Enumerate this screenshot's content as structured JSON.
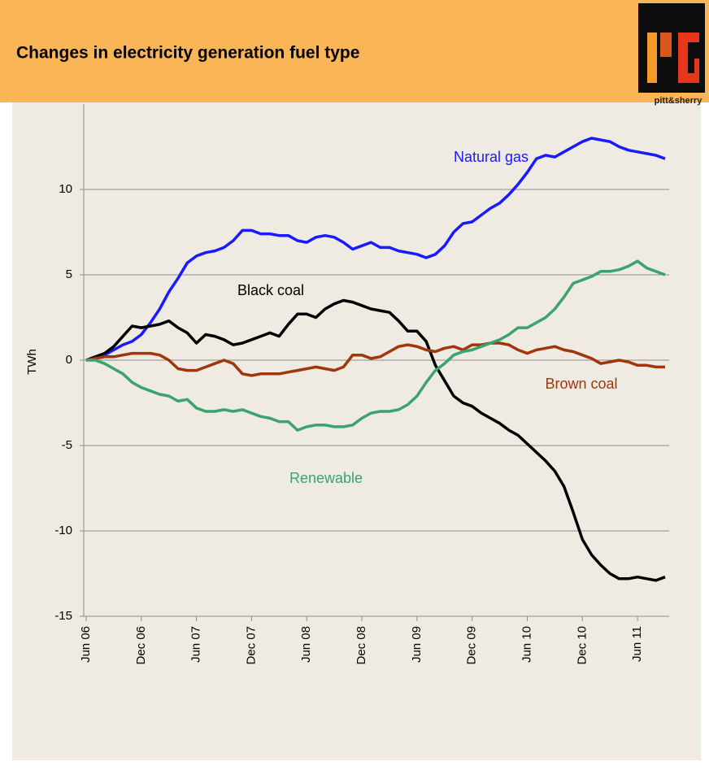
{
  "chart_data": {
    "type": "line",
    "title": "Changes in electricity generation fuel type",
    "logo_text": "pitt&sherry",
    "ylabel": "TWh",
    "categories": [
      "Jun 06",
      null,
      null,
      null,
      null,
      null,
      "Dec 06",
      null,
      null,
      null,
      null,
      null,
      "Jun 07",
      null,
      null,
      null,
      null,
      null,
      "Dec 07",
      null,
      null,
      null,
      null,
      null,
      "Jun 08",
      null,
      null,
      null,
      null,
      null,
      "Dec 08",
      null,
      null,
      null,
      null,
      null,
      "Jun 09",
      null,
      null,
      null,
      null,
      null,
      "Dec 09",
      null,
      null,
      null,
      null,
      null,
      "Jun 10",
      null,
      null,
      null,
      null,
      null,
      "Dec 10",
      null,
      null,
      null,
      null,
      null,
      "Jun 11",
      null,
      null,
      null
    ],
    "ylim": [
      -15,
      15
    ],
    "yticks": [
      -15,
      -10,
      -5,
      0,
      5,
      10
    ],
    "grid": true,
    "series": [
      {
        "name": "Natural gas",
        "color": "#1a1aff",
        "values": [
          0,
          0.1,
          0.3,
          0.6,
          0.9,
          1.1,
          1.5,
          2.2,
          3.0,
          4.0,
          4.8,
          5.7,
          6.1,
          6.3,
          6.4,
          6.6,
          7.0,
          7.6,
          7.6,
          7.4,
          7.4,
          7.3,
          7.3,
          7.0,
          6.9,
          7.2,
          7.3,
          7.2,
          6.9,
          6.5,
          6.7,
          6.9,
          6.6,
          6.6,
          6.4,
          6.3,
          6.2,
          6.0,
          6.2,
          6.7,
          7.5,
          8.0,
          8.1,
          8.5,
          8.9,
          9.2,
          9.7,
          10.3,
          11.0,
          11.8,
          12.0,
          11.9,
          12.2,
          12.5,
          12.8,
          13.0,
          12.9,
          12.8,
          12.5,
          12.3,
          12.2,
          12.1,
          12.0,
          11.8
        ]
      },
      {
        "name": "Black coal",
        "color": "#000000",
        "values": [
          0,
          0.2,
          0.4,
          0.8,
          1.4,
          2.0,
          1.9,
          2.0,
          2.1,
          2.3,
          1.9,
          1.6,
          1.0,
          1.5,
          1.4,
          1.2,
          0.9,
          1.0,
          1.2,
          1.4,
          1.6,
          1.4,
          2.1,
          2.7,
          2.7,
          2.5,
          3.0,
          3.3,
          3.5,
          3.4,
          3.2,
          3.0,
          2.9,
          2.8,
          2.3,
          1.7,
          1.7,
          1.1,
          -0.3,
          -1.2,
          -2.1,
          -2.5,
          -2.7,
          -3.1,
          -3.4,
          -3.7,
          -4.1,
          -4.4,
          -4.9,
          -5.4,
          -5.9,
          -6.5,
          -7.4,
          -8.9,
          -10.5,
          -11.4,
          -12.0,
          -12.5,
          -12.8,
          -12.8,
          -12.7,
          -12.8,
          -12.9,
          -12.7
        ]
      },
      {
        "name": "Brown coal",
        "color": "#a0360a",
        "values": [
          0,
          0.1,
          0.2,
          0.2,
          0.3,
          0.4,
          0.4,
          0.4,
          0.3,
          0,
          -0.5,
          -0.6,
          -0.6,
          -0.4,
          -0.2,
          0,
          -0.2,
          -0.8,
          -0.9,
          -0.8,
          -0.8,
          -0.8,
          -0.7,
          -0.6,
          -0.5,
          -0.4,
          -0.5,
          -0.6,
          -0.4,
          0.3,
          0.3,
          0.1,
          0.2,
          0.5,
          0.8,
          0.9,
          0.8,
          0.6,
          0.5,
          0.7,
          0.8,
          0.6,
          0.9,
          0.9,
          1.0,
          1.0,
          0.9,
          0.6,
          0.4,
          0.6,
          0.7,
          0.8,
          0.6,
          0.5,
          0.3,
          0.1,
          -0.2,
          -0.1,
          0,
          -0.1,
          -0.3,
          -0.3,
          -0.4,
          -0.4
        ]
      },
      {
        "name": "Renewable",
        "color": "#3aa36f",
        "values": [
          0,
          0,
          -0.2,
          -0.5,
          -0.8,
          -1.3,
          -1.6,
          -1.8,
          -2.0,
          -2.1,
          -2.4,
          -2.3,
          -2.8,
          -3.0,
          -3.0,
          -2.9,
          -3.0,
          -2.9,
          -3.1,
          -3.3,
          -3.4,
          -3.6,
          -3.6,
          -4.1,
          -3.9,
          -3.8,
          -3.8,
          -3.9,
          -3.9,
          -3.8,
          -3.4,
          -3.1,
          -3.0,
          -3.0,
          -2.9,
          -2.6,
          -2.1,
          -1.3,
          -0.6,
          -0.2,
          0.3,
          0.5,
          0.6,
          0.8,
          1.0,
          1.2,
          1.5,
          1.9,
          1.9,
          2.2,
          2.5,
          3.0,
          3.7,
          4.5,
          4.7,
          4.9,
          5.2,
          5.2,
          5.3,
          5.5,
          5.8,
          5.4,
          5.2,
          5.0
        ]
      }
    ]
  }
}
